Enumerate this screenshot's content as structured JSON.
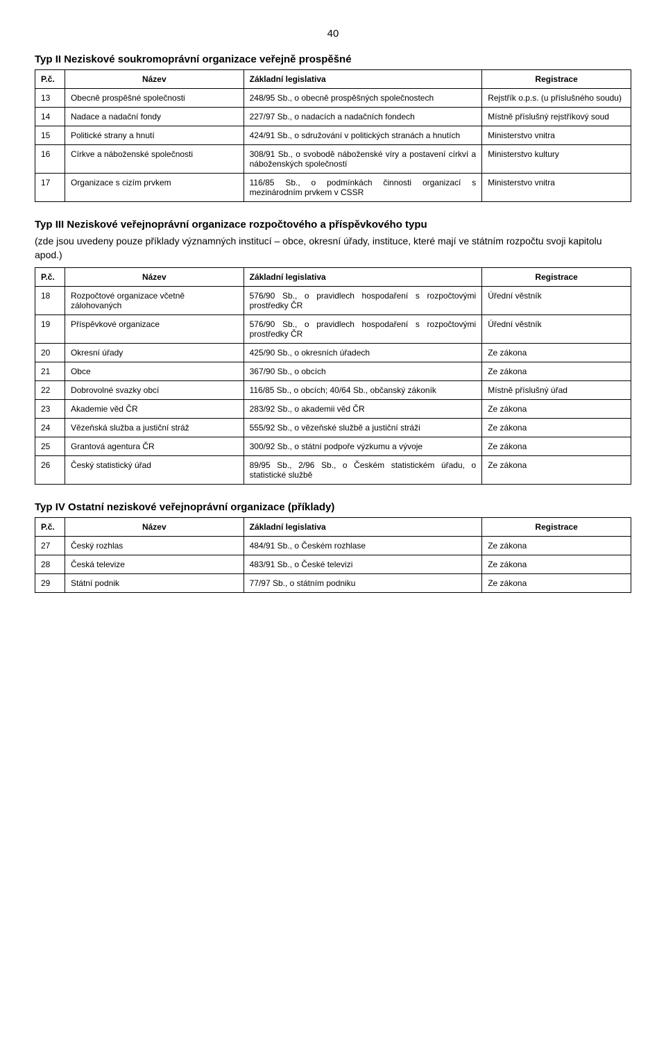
{
  "page_number": "40",
  "sections": [
    {
      "title": "Typ II Neziskové soukromoprávní organizace veřejně prospěšné",
      "intro": "",
      "headers": {
        "pc": "P.č.",
        "name": "Název",
        "leg": "Základní legislativa",
        "reg": "Registrace"
      },
      "rows": [
        {
          "pc": "13",
          "name": "Obecně prospěšné společnosti",
          "leg": "248/95 Sb., o obecně prospěšných společnostech",
          "reg": "Rejstřík o.p.s. (u příslušného soudu)"
        },
        {
          "pc": "14",
          "name": "Nadace a nadační fondy",
          "leg": "227/97 Sb., o nadacích a nadačních fondech",
          "reg": "Místně příslušný rejstříkový soud"
        },
        {
          "pc": "15",
          "name": "Politické strany a hnutí",
          "leg": "424/91 Sb., o sdružování v politických stranách a hnutích",
          "reg": "Ministerstvo vnitra"
        },
        {
          "pc": "16",
          "name": "Církve a náboženské společnosti",
          "leg": "308/91 Sb., o svobodě náboženské víry a postavení církví a náboženských společností",
          "reg": "Ministerstvo kultury"
        },
        {
          "pc": "17",
          "name": "Organizace s cizím prvkem",
          "leg": "116/85 Sb., o podmínkách činnosti organizací s mezinárodním prvkem v CSSR",
          "reg": "Ministerstvo vnitra"
        }
      ]
    },
    {
      "title": "Typ III Neziskové veřejnoprávní organizace rozpočtového a příspěvkového typu",
      "intro": "(zde jsou uvedeny pouze příklady významných institucí – obce, okresní úřady, instituce, které mají ve státním rozpočtu svoji kapitolu apod.)",
      "headers": {
        "pc": "P.č.",
        "name": "Název",
        "leg": "Základní legislativa",
        "reg": "Registrace"
      },
      "rows": [
        {
          "pc": "18",
          "name": "Rozpočtové organizace včetně zálohovaných",
          "leg": "576/90 Sb., o pravidlech hospodaření s rozpočtovými prostředky ČR",
          "reg": "Úřední věstník"
        },
        {
          "pc": "19",
          "name": "Příspěvkové organizace",
          "leg": "576/90 Sb., o pravidlech hospodaření s rozpočtovými prostředky ČR",
          "reg": "Úřední věstník"
        },
        {
          "pc": "20",
          "name": "Okresní úřady",
          "leg": "425/90 Sb., o okresních úřadech",
          "reg": "Ze zákona"
        },
        {
          "pc": "21",
          "name": "Obce",
          "leg": "367/90 Sb., o obcích",
          "reg": "Ze zákona"
        },
        {
          "pc": "22",
          "name": "Dobrovolné svazky obcí",
          "leg": "116/85 Sb., o obcích; 40/64 Sb., občanský zákoník",
          "reg": "Místně příslušný úřad"
        },
        {
          "pc": "23",
          "name": "Akademie věd ČR",
          "leg": "283/92 Sb., o akademii věd ČR",
          "reg": "Ze zákona"
        },
        {
          "pc": "24",
          "name": "Vězeňská služba a justiční stráž",
          "leg": "555/92 Sb., o vězeňské službě a justiční stráži",
          "reg": "Ze zákona"
        },
        {
          "pc": "25",
          "name": "Grantová agentura ČR",
          "leg": "300/92 Sb., o státní podpoře výzkumu a vývoje",
          "reg": "Ze zákona"
        },
        {
          "pc": "26",
          "name": "Český statistický úřad",
          "leg": "89/95 Sb., 2/96 Sb., o Českém statistickém úřadu, o statistické službě",
          "reg": "Ze zákona"
        }
      ]
    },
    {
      "title": "Typ IV  Ostatní neziskové veřejnoprávní organizace (příklady)",
      "intro": "",
      "headers": {
        "pc": "P.č.",
        "name": "Název",
        "leg": "Základní legislativa",
        "reg": "Registrace"
      },
      "rows": [
        {
          "pc": "27",
          "name": "Český rozhlas",
          "leg": "484/91 Sb., o Českém rozhlase",
          "reg": "Ze zákona"
        },
        {
          "pc": "28",
          "name": "Česká televize",
          "leg": "483/91 Sb., o České televizi",
          "reg": "Ze zákona"
        },
        {
          "pc": "29",
          "name": "Státní podnik",
          "leg": "77/97 Sb., o státním podniku",
          "reg": "Ze zákona"
        }
      ]
    }
  ]
}
